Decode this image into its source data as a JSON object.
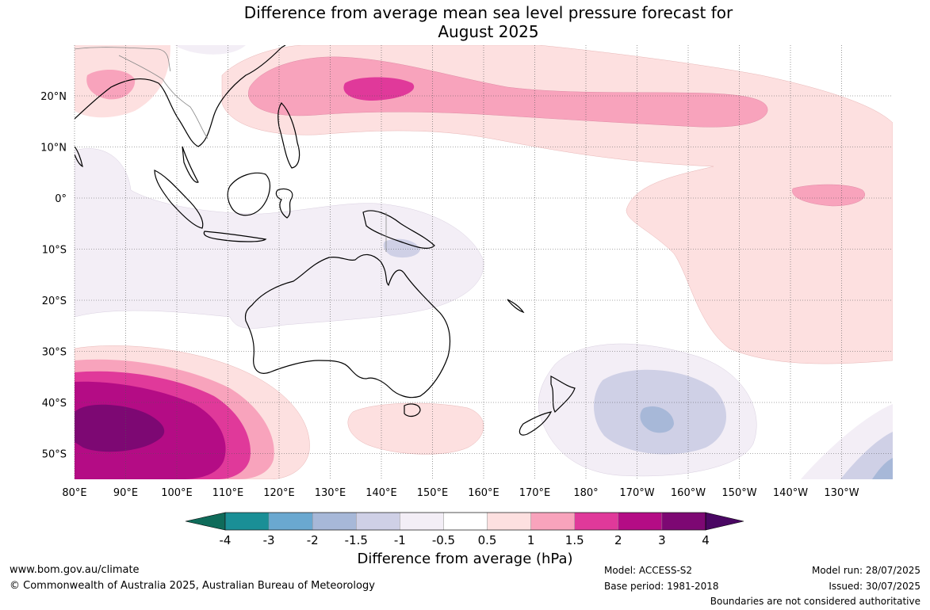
{
  "title_line1": "Difference from average mean sea level pressure forecast for",
  "title_line2": "August 2025",
  "lat_labels": [
    "20°N",
    "10°N",
    "0°",
    "10°S",
    "20°S",
    "30°S",
    "40°S",
    "50°S"
  ],
  "lon_labels": [
    "80°E",
    "90°E",
    "100°E",
    "110°E",
    "120°E",
    "130°E",
    "140°E",
    "150°E",
    "160°E",
    "170°E",
    "180°",
    "170°W",
    "160°W",
    "150°W",
    "140°W",
    "130°W"
  ],
  "colorbar": {
    "ticks": [
      "-4",
      "-3",
      "-2",
      "-1.5",
      "-1",
      "-0.5",
      "0.5",
      "1",
      "1.5",
      "2",
      "3",
      "4"
    ],
    "colors": [
      "#0f6b5a",
      "#1a8f96",
      "#6aa8d0",
      "#a7b8d8",
      "#cfd0e6",
      "#f3eef6",
      "#ffffff",
      "#fde0e0",
      "#f8a3bc",
      "#e0399a",
      "#b40c85",
      "#7d0873",
      "#4a0763"
    ],
    "label": "Difference from average (hPa)"
  },
  "footer": {
    "url": "www.bom.gov.au/climate",
    "copyright": "© Commonwealth of Australia 2025, Australian Bureau of Meteorology",
    "model": "Model: ACCESS-S2",
    "base_period": "Base period: 1981-2018",
    "model_run": "Model run: 28/07/2025",
    "issued": "Issued: 30/07/2025",
    "disclaimer": "Boundaries are not considered authoritative"
  }
}
